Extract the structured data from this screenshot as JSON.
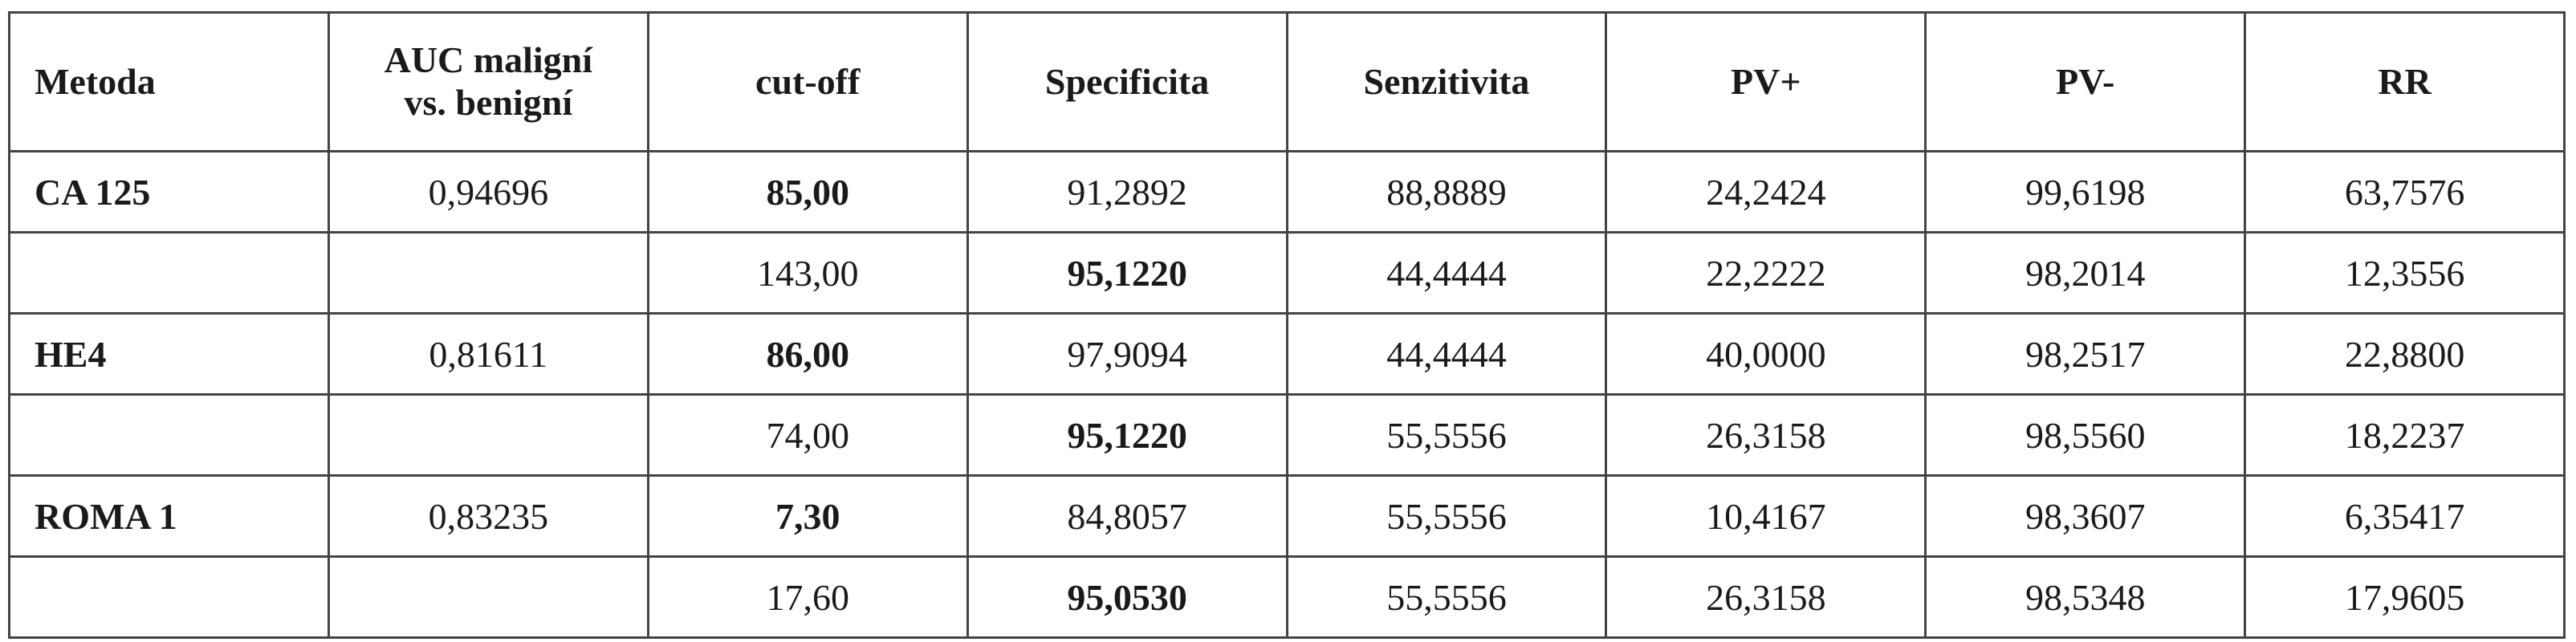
{
  "table": {
    "header": [
      "Metoda",
      "AUC maligní vs. benigní",
      "cut-off",
      "Specificita",
      "Senzitivita",
      "PV+",
      "PV-",
      "RR"
    ],
    "rows": [
      {
        "method": "CA 125",
        "auc": "0,94696",
        "values": [
          "85,00",
          "91,2892",
          "88,8889",
          "24,2424",
          "99,6198",
          "63,7576"
        ]
      },
      {
        "values": [
          "143,00",
          "95,1220",
          "44,4444",
          "22,2222",
          "98,2014",
          "12,3556"
        ]
      },
      {
        "method": "HE4",
        "auc": "0,81611",
        "values": [
          "86,00",
          "97,9094",
          "44,4444",
          "40,0000",
          "98,2517",
          "22,8800"
        ]
      },
      {
        "values": [
          "74,00",
          "95,1220",
          "55,5556",
          "26,3158",
          "98,5560",
          "18,2237"
        ]
      },
      {
        "method": "ROMA 1",
        "auc": "0,83235",
        "values": [
          "7,30",
          "84,8057",
          "55,5556",
          "10,4167",
          "98,3607",
          "6,35417"
        ]
      },
      {
        "values": [
          "17,60",
          "95,0530",
          "55,5556",
          "26,3158",
          "98,5348",
          "17,9605"
        ]
      }
    ]
  }
}
